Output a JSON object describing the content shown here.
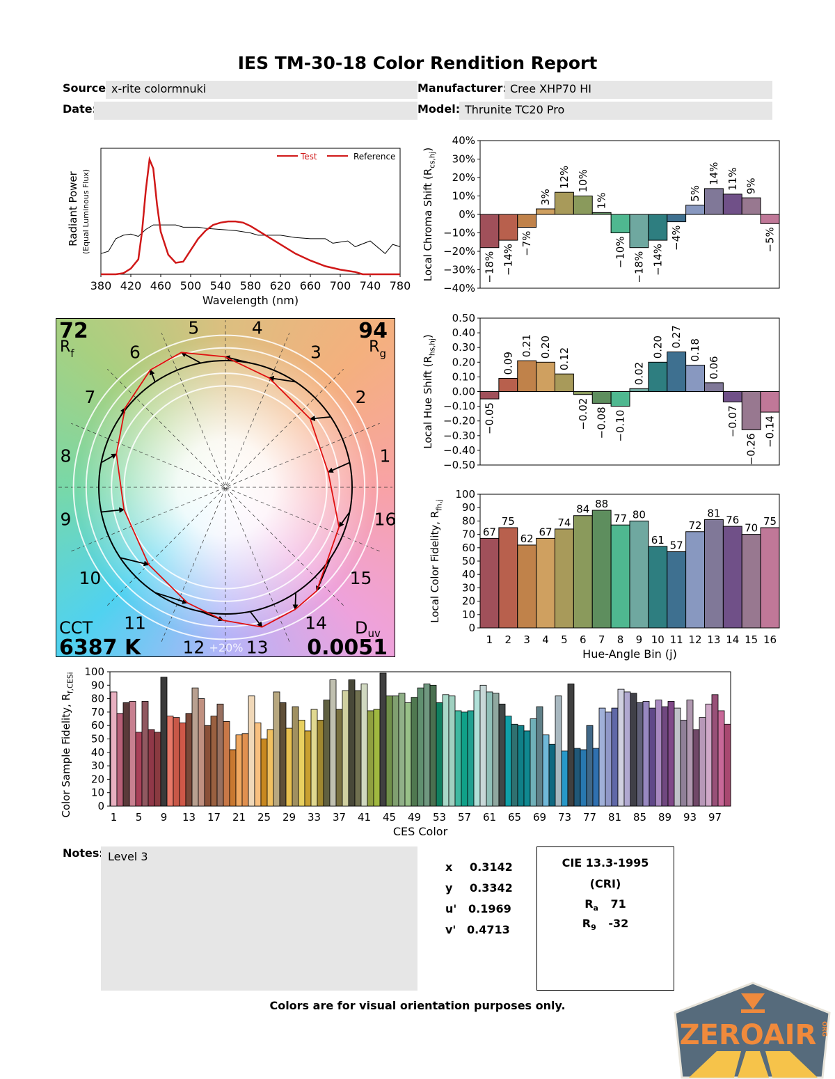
{
  "report": {
    "title": "IES TM-30-18 Color Rendition Report",
    "source_label": "Source:",
    "source_value": "x-rite colormnuki",
    "date_label": "Date:",
    "date_value": "",
    "manufacturer_label": "Manufacturer:",
    "manufacturer_value": "Cree XHP70 HI",
    "model_label": "Model:",
    "model_value": "Thrunite TC20 Pro"
  },
  "vector_graphic": {
    "rf": "72",
    "rf_label": "R",
    "rf_sub": "f",
    "rg": "94",
    "rg_label": "R",
    "rg_sub": "g",
    "cct_label": "CCT",
    "cct": "6387 K",
    "duv_label": "D",
    "duv_sub": "uv",
    "duv": "0.0051",
    "ring_label": "+20%",
    "bin_labels": [
      "1",
      "2",
      "3",
      "4",
      "5",
      "6",
      "7",
      "8",
      "9",
      "10",
      "11",
      "12",
      "13",
      "14",
      "15",
      "16"
    ],
    "colors": {
      "reference": "#000000",
      "test": "#e01010"
    }
  },
  "chart_data": [
    {
      "type": "line",
      "xlabel": "Wavelength (nm)",
      "ylabel": "Radiant Power",
      "ylabel2": "(Equal Luminous Flux)",
      "xlim": [
        380,
        780
      ],
      "xticks": [
        380,
        420,
        460,
        500,
        540,
        580,
        620,
        660,
        700,
        740,
        780
      ],
      "legend": "top-right",
      "series": [
        {
          "name": "Test",
          "color": "#d01818",
          "x": [
            380,
            400,
            410,
            420,
            430,
            435,
            440,
            445,
            450,
            455,
            460,
            470,
            480,
            490,
            500,
            510,
            520,
            530,
            540,
            550,
            560,
            570,
            580,
            590,
            600,
            620,
            640,
            660,
            680,
            700,
            720,
            730,
            780
          ],
          "y": [
            0,
            0,
            0.01,
            0.05,
            0.13,
            0.37,
            0.73,
            1.0,
            0.92,
            0.61,
            0.37,
            0.17,
            0.1,
            0.11,
            0.21,
            0.31,
            0.38,
            0.43,
            0.45,
            0.46,
            0.46,
            0.45,
            0.42,
            0.38,
            0.34,
            0.26,
            0.18,
            0.12,
            0.07,
            0.04,
            0.02,
            0,
            0
          ]
        },
        {
          "name": "Reference",
          "color": "#000000",
          "x": [
            380,
            390,
            400,
            410,
            420,
            430,
            440,
            450,
            460,
            470,
            480,
            490,
            500,
            510,
            520,
            540,
            560,
            580,
            590,
            600,
            620,
            640,
            660,
            680,
            690,
            700,
            710,
            720,
            740,
            760,
            770,
            780
          ],
          "y": [
            0.18,
            0.2,
            0.31,
            0.34,
            0.35,
            0.33,
            0.39,
            0.43,
            0.43,
            0.43,
            0.43,
            0.41,
            0.41,
            0.41,
            0.4,
            0.39,
            0.38,
            0.36,
            0.34,
            0.34,
            0.34,
            0.32,
            0.31,
            0.31,
            0.27,
            0.28,
            0.29,
            0.24,
            0.29,
            0.18,
            0.26,
            0.24
          ]
        }
      ]
    },
    {
      "type": "bar",
      "ylabel": "Local Chroma Shift (R",
      "ylabel_sub": "cs,hj",
      "ylabel_end": ")",
      "ylim": [
        -40,
        40
      ],
      "yticks": [
        "40%",
        "30%",
        "20%",
        "10%",
        "0%",
        "−10%",
        "−20%",
        "−30%",
        "−40%"
      ],
      "categories": [
        "1",
        "2",
        "3",
        "4",
        "5",
        "6",
        "7",
        "8",
        "9",
        "10",
        "11",
        "12",
        "13",
        "14",
        "15",
        "16"
      ],
      "values": [
        -18,
        -14,
        -7,
        3,
        12,
        10,
        1,
        -10,
        -18,
        -14,
        -4,
        5,
        14,
        11,
        9,
        -5
      ],
      "value_labels": [
        "−18%",
        "−14%",
        "−7%",
        "3%",
        "12%",
        "10%",
        "1%",
        "−10%",
        "−18%",
        "−14%",
        "−4%",
        "5%",
        "14%",
        "11%",
        "9%",
        "−5%"
      ]
    },
    {
      "type": "bar",
      "ylabel": "Local Hue Shift (R",
      "ylabel_sub": "hs,hj",
      "ylabel_end": ")",
      "ylim": [
        -0.5,
        0.5
      ],
      "yticks": [
        "0.50",
        "0.40",
        "0.30",
        "0.20",
        "0.10",
        "0.00",
        "−0.10",
        "−0.20",
        "−0.30",
        "−0.40",
        "−0.50"
      ],
      "categories": [
        "1",
        "2",
        "3",
        "4",
        "5",
        "6",
        "7",
        "8",
        "9",
        "10",
        "11",
        "12",
        "13",
        "14",
        "15",
        "16"
      ],
      "values": [
        -0.05,
        0.09,
        0.21,
        0.2,
        0.12,
        -0.02,
        -0.08,
        -0.1,
        0.02,
        0.2,
        0.27,
        0.18,
        0.06,
        -0.07,
        -0.26,
        -0.14
      ],
      "value_labels": [
        "−0.05",
        "0.09",
        "0.21",
        "0.20",
        "0.12",
        "−0.02",
        "−0.08",
        "−0.10",
        "0.02",
        "0.20",
        "0.27",
        "0.18",
        "0.06",
        "−0.07",
        "−0.26",
        "−0.14"
      ]
    },
    {
      "type": "bar",
      "ylabel": "Local Color Fidelity, R",
      "ylabel_sub": "fh,j",
      "ylabel_end": "",
      "xlabel": "Hue-Angle Bin (j)",
      "ylim": [
        0,
        100
      ],
      "yticks": [
        "100",
        "90",
        "80",
        "70",
        "60",
        "50",
        "40",
        "30",
        "20",
        "10",
        "0"
      ],
      "categories": [
        "1",
        "2",
        "3",
        "4",
        "5",
        "6",
        "7",
        "8",
        "9",
        "10",
        "11",
        "12",
        "13",
        "14",
        "15",
        "16"
      ],
      "values": [
        67,
        75,
        62,
        67,
        74,
        84,
        88,
        77,
        80,
        61,
        57,
        72,
        81,
        76,
        70,
        75
      ]
    },
    {
      "type": "bar",
      "ylabel": "Color Sample Fidelity, R",
      "ylabel_sub": "f,CESi",
      "ylabel_end": "",
      "xlabel": "CES Color",
      "ylim": [
        0,
        100
      ],
      "yticks": [
        "100",
        "90",
        "80",
        "70",
        "60",
        "50",
        "40",
        "30",
        "20",
        "10",
        "0"
      ],
      "xticks": [
        "1",
        "5",
        "9",
        "13",
        "17",
        "21",
        "25",
        "29",
        "33",
        "37",
        "41",
        "45",
        "49",
        "53",
        "57",
        "61",
        "65",
        "69",
        "73",
        "77",
        "81",
        "85",
        "89",
        "93",
        "97"
      ],
      "values": [
        85,
        69,
        77,
        78,
        55,
        78,
        57,
        55,
        96,
        67,
        66,
        62,
        69,
        88,
        80,
        60,
        67,
        76,
        63,
        42,
        53,
        54,
        82,
        62,
        50,
        57,
        85,
        77,
        58,
        74,
        64,
        56,
        72,
        64,
        79,
        94,
        72,
        86,
        94,
        86,
        91,
        71,
        72,
        99,
        82,
        82,
        84,
        77,
        81,
        88,
        91,
        90,
        77,
        83,
        82,
        71,
        70,
        71,
        86,
        90,
        85,
        84,
        76,
        67,
        61,
        60,
        56,
        65,
        74,
        53,
        46,
        82,
        41,
        91,
        43,
        42,
        60,
        43,
        73,
        70,
        73,
        87,
        85,
        84,
        77,
        78,
        73,
        79,
        74,
        78,
        73,
        64,
        79,
        57,
        66,
        76,
        83,
        71,
        61
      ],
      "colors": [
        "#e8b0c0",
        "#b86078",
        "#5a3a3a",
        "#c88090",
        "#a84058",
        "#905860",
        "#903848",
        "#8a3a40",
        "#3a3a3a",
        "#e87868",
        "#c85848",
        "#d05848",
        "#7a4838",
        "#b8a090",
        "#c09080",
        "#8a5038",
        "#9a6040",
        "#987060",
        "#c87848",
        "#c87830",
        "#f0a860",
        "#e09050",
        "#f0d8b8",
        "#f8c080",
        "#c88820",
        "#f0c060",
        "#b8a880",
        "#605038",
        "#e8c050",
        "#a09060",
        "#e8d060",
        "#c8a030",
        "#e0d890",
        "#a08830",
        "#606040",
        "#c0c0b0",
        "#787040",
        "#d0d0a0",
        "#484838",
        "#707050",
        "#d0d8c0",
        "#90a040",
        "#a0b840",
        "#404040",
        "#70904a",
        "#80a070",
        "#90b088",
        "#98c088",
        "#507850",
        "#609070",
        "#709880",
        "#4a7050",
        "#108060",
        "#a8d8c8",
        "#a0d0c0",
        "#40b8a0",
        "#10a088",
        "#20a090",
        "#b0e0d8",
        "#c8d8d8",
        "#90c0b8",
        "#90a8a0",
        "#404848",
        "#10a0a8",
        "#307070",
        "#108088",
        "#108890",
        "#70b0b8",
        "#608088",
        "#70b8d8",
        "#106880",
        "#a8b8c0",
        "#2898c8",
        "#404040",
        "#205878",
        "#2878b0",
        "#406888",
        "#3070b0",
        "#a0b0d8",
        "#9098c8",
        "#6068a8",
        "#d0d0e0",
        "#b0a8d0",
        "#404048",
        "#606078",
        "#9888c0",
        "#604888",
        "#a888c0",
        "#704880",
        "#804888",
        "#c0c0c8",
        "#908098",
        "#b098b0",
        "#704868",
        "#b898b8",
        "#d0a8c8",
        "#985078",
        "#c86898",
        "#a84870"
      ]
    }
  ],
  "bin_colors": [
    "#a0505a",
    "#b8604d",
    "#c0824a",
    "#cfa060",
    "#a89a5a",
    "#8a9a5c",
    "#5e8e5e",
    "#4fb890",
    "#6fa8a0",
    "#2e7e80",
    "#3e7090",
    "#8898c0",
    "#807898",
    "#705088",
    "#987890",
    "#c07898"
  ],
  "notes": {
    "label": "Notes:",
    "value": "Level 3"
  },
  "chromaticity": [
    {
      "label": "x",
      "value": "0.3142"
    },
    {
      "label": "y",
      "value": "0.3342"
    },
    {
      "label": "u'",
      "value": "0.1969"
    },
    {
      "label": "v'",
      "value": "0.4713"
    }
  ],
  "cri": {
    "title": "CIE 13.3-1995",
    "subtitle": "(CRI)",
    "ra_label": "R",
    "ra_sub": "a",
    "ra": "71",
    "r9_label": "R",
    "r9_sub": "9",
    "r9": "-32"
  },
  "footer": "Colors are for visual orientation purposes only.",
  "watermark": {
    "text": "ZEROAIR",
    "sub": "ORG",
    "colors": {
      "shield": "#566b7c",
      "text": "#f08a3c",
      "accent": "#f6c34a"
    }
  }
}
